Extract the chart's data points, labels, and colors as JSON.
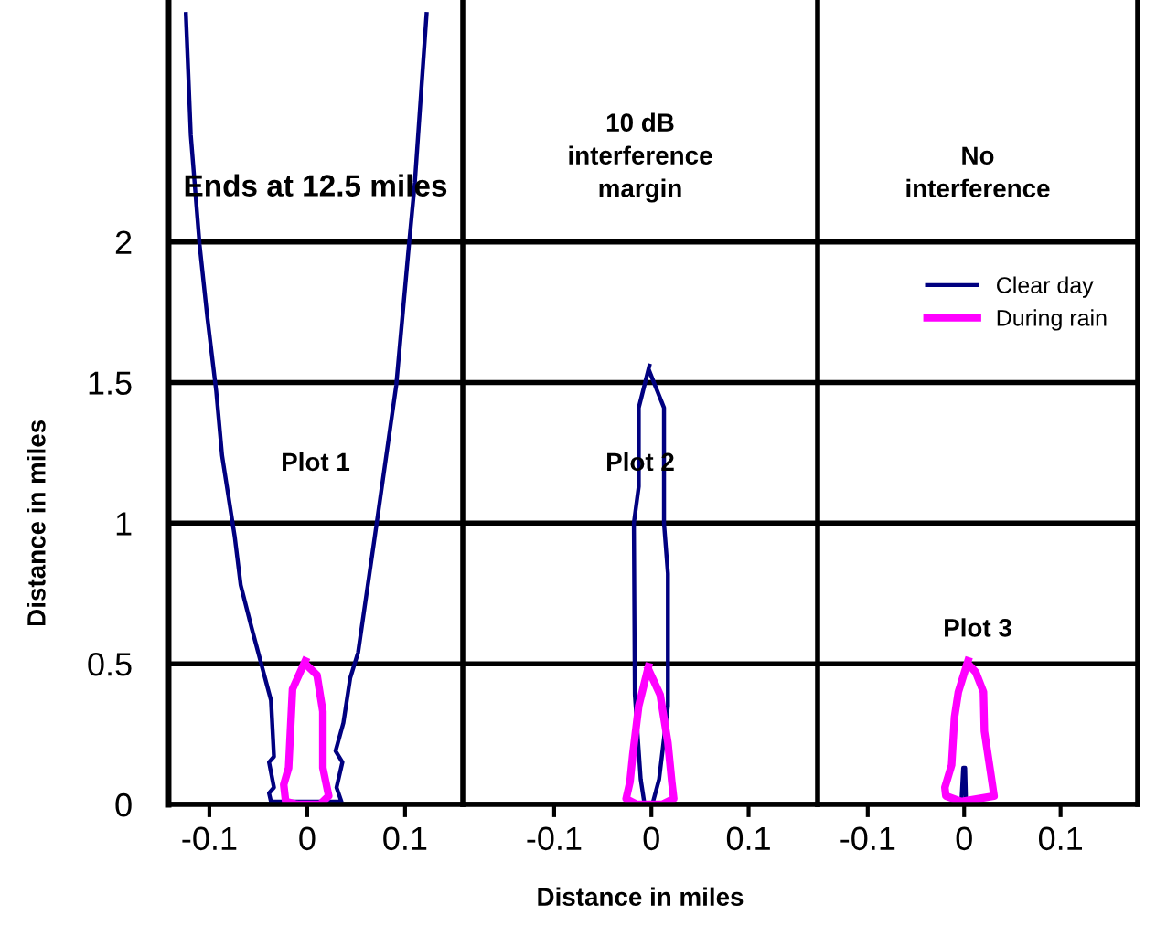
{
  "chart_data": [
    {
      "type": "line",
      "title": "Ends at 12.5 miles",
      "ylabel": "Distance in miles",
      "xlim": [
        -0.142,
        0.159
      ],
      "ylim": [
        0,
        2.86
      ],
      "xticks": [
        -0.1,
        0,
        0.1
      ],
      "yticks": [
        0,
        0.5,
        1,
        1.5,
        2
      ],
      "grid": "y",
      "annotations": [
        "Plot 1"
      ],
      "series": [
        {
          "color": "#000080",
          "x": [
            -0.124,
            -0.119,
            -0.11,
            -0.102,
            -0.093,
            -0.087,
            -0.074,
            -0.068,
            -0.057,
            -0.047,
            -0.037,
            -0.034,
            -0.039,
            -0.034,
            -0.039,
            -0.037,
            0.035,
            0.03,
            0.036,
            0.029,
            0.037,
            0.044,
            0.052,
            0.069,
            0.091,
            0.104,
            0.11,
            0.122
          ],
          "values": [
            2.81,
            2.38,
            1.99,
            1.73,
            1.47,
            1.24,
            0.95,
            0.78,
            0.63,
            0.5,
            0.37,
            0.17,
            0.15,
            0.06,
            0.04,
            0.01,
            0.01,
            0.06,
            0.15,
            0.19,
            0.29,
            0.45,
            0.54,
            0.95,
            1.49,
            1.99,
            2.21,
            2.81
          ]
        },
        {
          "color": "#ff00ff",
          "x": [
            -0.002,
            -0.015,
            -0.019,
            -0.024,
            -0.022,
            -0.01,
            0.013,
            0.022,
            0.016,
            0.016,
            0.01,
            -0.002
          ],
          "values": [
            0.51,
            0.41,
            0.13,
            0.07,
            0.01,
            0.0,
            0.0,
            0.03,
            0.13,
            0.33,
            0.46,
            0.5
          ]
        }
      ]
    },
    {
      "type": "line",
      "title": "10 dB\ninterference\nmargin",
      "xlabel": "Distance in miles",
      "xlim": [
        -0.194,
        0.171
      ],
      "ylim": [
        0,
        2.86
      ],
      "xticks": [
        -0.1,
        0,
        0.1
      ],
      "yticks": [
        0,
        0.5,
        1,
        1.5,
        2
      ],
      "grid": "y",
      "tick_labels": "x",
      "annotations": [
        "Plot 2"
      ],
      "series": [
        {
          "color": "#000080",
          "x": [
            -0.002,
            -0.013,
            -0.013,
            -0.018,
            -0.017,
            -0.011,
            -0.007,
            0.001,
            0.008,
            0.017,
            0.017,
            0.013,
            0.013,
            -0.002
          ],
          "values": [
            1.56,
            1.41,
            1.13,
            1.0,
            0.39,
            0.09,
            0.0,
            0.0,
            0.09,
            0.35,
            0.82,
            1.0,
            1.41,
            1.54
          ]
        },
        {
          "color": "#ff00ff",
          "x": [
            -0.003,
            -0.013,
            -0.019,
            -0.022,
            -0.026,
            -0.015,
            0.011,
            0.023,
            0.021,
            0.017,
            0.009,
            -0.003
          ],
          "values": [
            0.49,
            0.35,
            0.18,
            0.08,
            0.02,
            0.0,
            0.0,
            0.02,
            0.08,
            0.22,
            0.39,
            0.48
          ]
        }
      ]
    },
    {
      "type": "line",
      "title": "No\ninterference",
      "xlim": [
        -0.152,
        0.18
      ],
      "ylim": [
        0,
        2.86
      ],
      "xticks": [
        -0.1,
        0,
        0.1
      ],
      "yticks": [
        0,
        0.5,
        1,
        1.5,
        2
      ],
      "grid": "y",
      "tick_labels": "x",
      "legend": "top right",
      "annotations": [
        "Plot 3"
      ],
      "series": [
        {
          "name": "Clear day",
          "color": "#000080",
          "x": [
            -0.003,
            -0.001,
            0.001,
            0.002
          ],
          "values": [
            0.0,
            0.13,
            0.13,
            0.0
          ]
        },
        {
          "name": "During rain",
          "color": "#ff00ff",
          "x": [
            0.004,
            -0.006,
            -0.01,
            -0.013,
            -0.02,
            -0.019,
            -0.003,
            0.031,
            0.028,
            0.021,
            0.02,
            0.012,
            0.004
          ],
          "values": [
            0.51,
            0.4,
            0.31,
            0.14,
            0.06,
            0.03,
            0.01,
            0.03,
            0.1,
            0.26,
            0.4,
            0.47,
            0.5
          ]
        }
      ]
    }
  ]
}
